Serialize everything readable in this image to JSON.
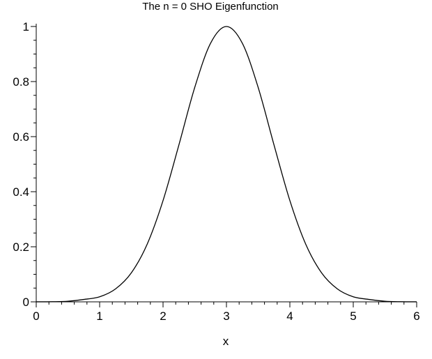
{
  "chart_data": {
    "type": "line",
    "title": "The n = 0 SHO Eigenfunction",
    "xlabel": "x",
    "ylabel": "",
    "xlim": [
      0,
      6
    ],
    "ylim": [
      0,
      1
    ],
    "grid": false,
    "x_ticks": [
      "0",
      "1",
      "2",
      "3",
      "4",
      "5",
      "6"
    ],
    "y_ticks": [
      "0",
      "0.2",
      "0.4",
      "0.6",
      "0.8",
      "1"
    ],
    "line_color": "#000000",
    "series": [
      {
        "x": [
          0,
          0.25,
          0.5,
          0.75,
          1,
          1.25,
          1.5,
          1.75,
          2,
          2.25,
          2.5,
          2.75,
          3,
          3.25,
          3.5,
          3.75,
          4,
          4.25,
          4.5,
          4.75,
          5,
          5.25,
          5.5,
          5.75,
          6
        ],
        "values": [
          0.0001,
          0.0005,
          0.0022,
          0.0087,
          0.0183,
          0.0468,
          0.1054,
          0.2096,
          0.3679,
          0.5698,
          0.7788,
          0.9394,
          1.0,
          0.9394,
          0.7788,
          0.5698,
          0.3679,
          0.2096,
          0.1054,
          0.0468,
          0.0183,
          0.0087,
          0.0022,
          0.0005,
          0.0001
        ]
      }
    ]
  }
}
